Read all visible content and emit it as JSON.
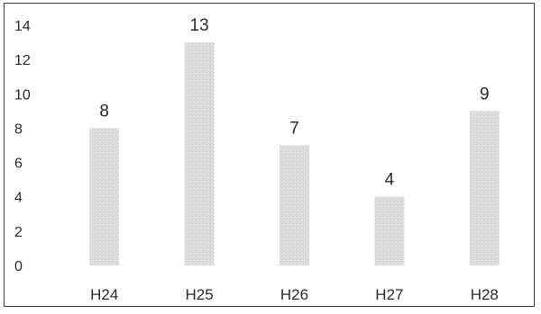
{
  "chart_data": {
    "type": "bar",
    "categories": [
      "H24",
      "H25",
      "H26",
      "H27",
      "H28"
    ],
    "values": [
      8,
      13,
      7,
      4,
      9
    ],
    "ylim": [
      0,
      14
    ],
    "yticks": [
      0,
      2,
      4,
      6,
      8,
      10,
      12,
      14
    ],
    "grid": false,
    "legend": "none",
    "data_labels": true,
    "bar_color": "#d9d9d9"
  }
}
